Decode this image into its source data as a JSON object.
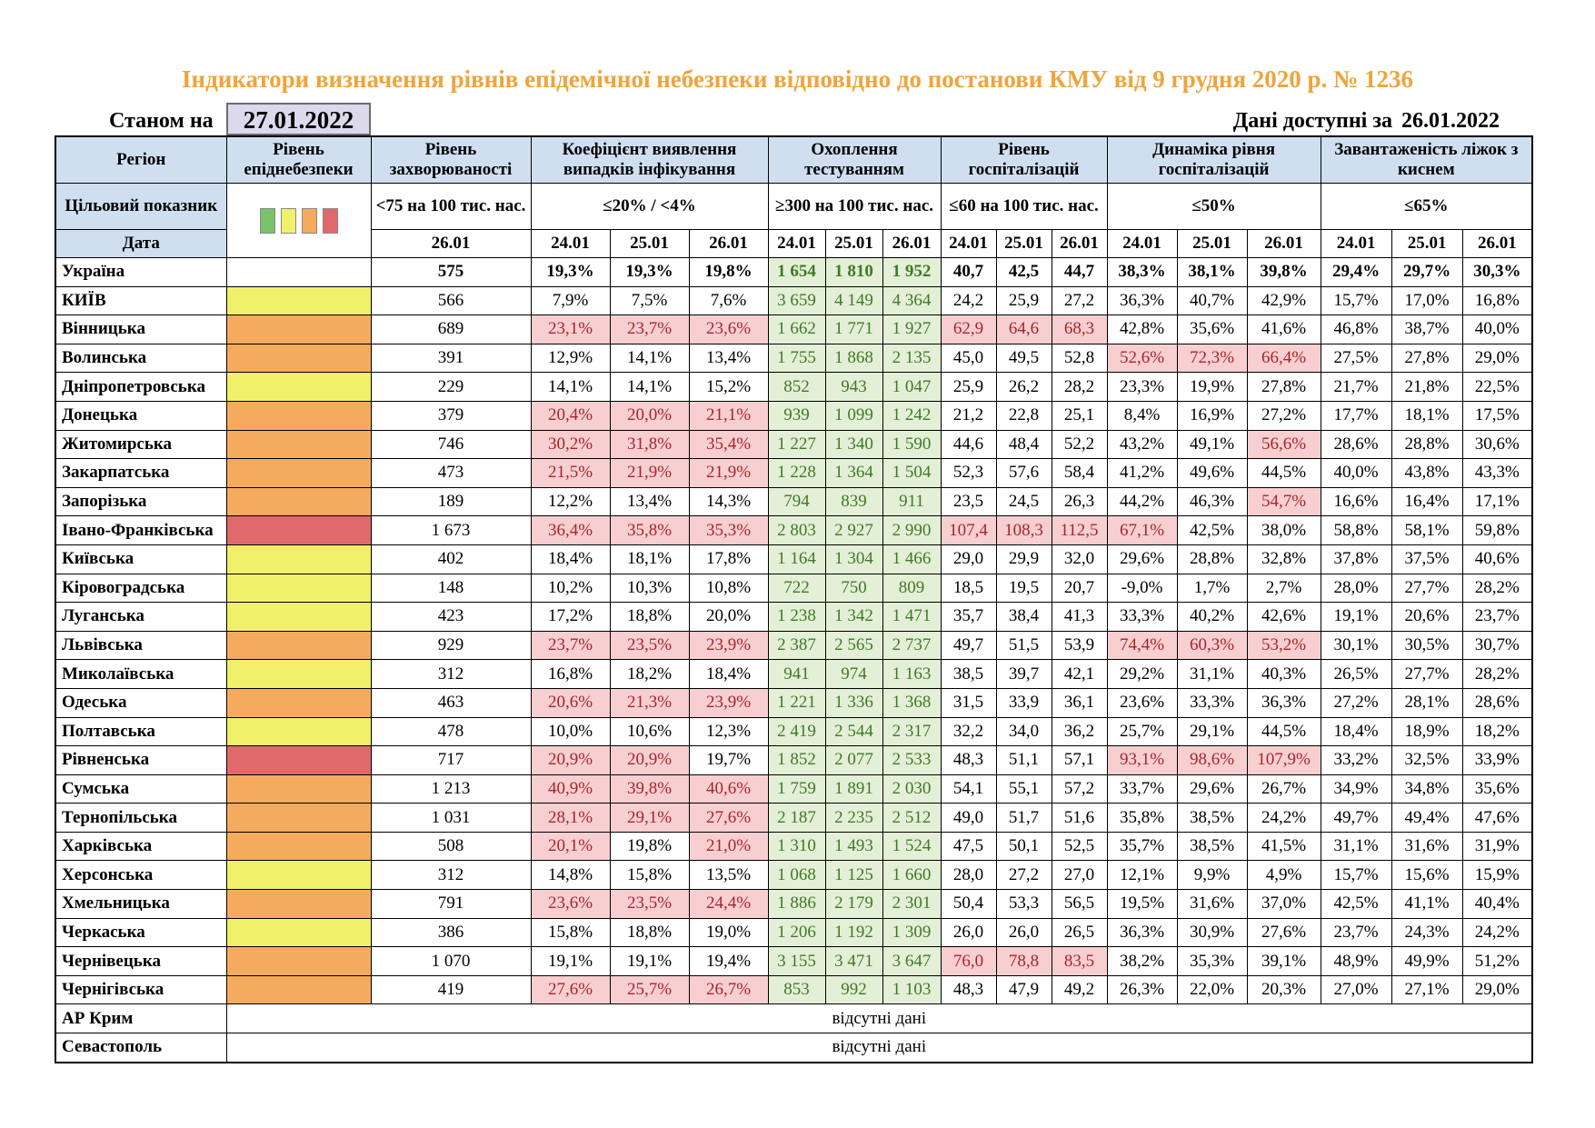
{
  "title": "Індикатори визначення рівнів епідемічної небезпеки відповідно до постанови КМУ від 9 грудня 2020 р. № 1236",
  "as_of_label": "Станом на",
  "as_of_date": "27.01.2022",
  "available_label": "Дані доступні за",
  "available_date": "26.01.2022",
  "headers": {
    "region": "Регіон",
    "danger_level": "Рівень епіднебезпеки",
    "incidence": "Рівень захворюваності",
    "detection": "Коефіцієнт виявлення випадків інфікування",
    "testing": "Охоплення тестуванням",
    "hospitalization": "Рівень госпіталізацій",
    "hosp_dynamics": "Динаміка рівня госпіталізацій",
    "oxygen_beds": "Завантаженість ліжок з киснем",
    "target": "Цільовий показник",
    "target_incidence": "<75 на 100 тис. нас.",
    "target_detection": "≤20% / <4%",
    "target_testing": "≥300 на 100 тис. нас.",
    "target_hosp": "≤60 на 100 тис. нас.",
    "target_dyn": "≤50%",
    "target_oxygen": "≤65%",
    "date": "Дата",
    "d_incidence": "26.01",
    "dates": [
      "24.01",
      "25.01",
      "26.01"
    ]
  },
  "legend_colors": [
    "#7cc26a",
    "#f1f06b",
    "#f4ab5e",
    "#e0696c"
  ],
  "level_colors": {
    "yellow": "#f1f06b",
    "orange": "#f4ab5e",
    "red": "#e0696c"
  },
  "no_data_text": "відсутні дані",
  "rows": [
    {
      "region": "Україна",
      "level": "",
      "inc": "575",
      "det": [
        "19,3%",
        "19,3%",
        "19,8%"
      ],
      "test": [
        "1 654",
        "1 810",
        "1 952"
      ],
      "hosp": [
        "40,7",
        "42,5",
        "44,7"
      ],
      "dyn": [
        "38,3%",
        "38,1%",
        "39,8%"
      ],
      "oxy": [
        "29,4%",
        "29,7%",
        "30,3%"
      ],
      "detF": [
        0,
        0,
        0
      ],
      "testF": [
        1,
        1,
        1
      ],
      "hospF": [
        0,
        0,
        0
      ],
      "dynF": [
        0,
        0,
        0
      ]
    },
    {
      "region": "КИЇВ",
      "level": "yellow",
      "inc": "566",
      "det": [
        "7,9%",
        "7,5%",
        "7,6%"
      ],
      "test": [
        "3 659",
        "4 149",
        "4 364"
      ],
      "hosp": [
        "24,2",
        "25,9",
        "27,2"
      ],
      "dyn": [
        "36,3%",
        "40,7%",
        "42,9%"
      ],
      "oxy": [
        "15,7%",
        "17,0%",
        "16,8%"
      ],
      "detF": [
        0,
        0,
        0
      ],
      "testF": [
        1,
        1,
        1
      ],
      "hospF": [
        0,
        0,
        0
      ],
      "dynF": [
        0,
        0,
        0
      ]
    },
    {
      "region": "Вінницька",
      "level": "orange",
      "inc": "689",
      "det": [
        "23,1%",
        "23,7%",
        "23,6%"
      ],
      "test": [
        "1 662",
        "1 771",
        "1 927"
      ],
      "hosp": [
        "62,9",
        "64,6",
        "68,3"
      ],
      "dyn": [
        "42,8%",
        "35,6%",
        "41,6%"
      ],
      "oxy": [
        "46,8%",
        "38,7%",
        "40,0%"
      ],
      "detF": [
        1,
        1,
        1
      ],
      "testF": [
        1,
        1,
        1
      ],
      "hospF": [
        1,
        1,
        1
      ],
      "dynF": [
        0,
        0,
        0
      ]
    },
    {
      "region": "Волинська",
      "level": "orange",
      "inc": "391",
      "det": [
        "12,9%",
        "14,1%",
        "13,4%"
      ],
      "test": [
        "1 755",
        "1 868",
        "2 135"
      ],
      "hosp": [
        "45,0",
        "49,5",
        "52,8"
      ],
      "dyn": [
        "52,6%",
        "72,3%",
        "66,4%"
      ],
      "oxy": [
        "27,5%",
        "27,8%",
        "29,0%"
      ],
      "detF": [
        0,
        0,
        0
      ],
      "testF": [
        1,
        1,
        1
      ],
      "hospF": [
        0,
        0,
        0
      ],
      "dynF": [
        1,
        1,
        1
      ]
    },
    {
      "region": "Дніпропетровська",
      "level": "yellow",
      "inc": "229",
      "det": [
        "14,1%",
        "14,1%",
        "15,2%"
      ],
      "test": [
        "852",
        "943",
        "1 047"
      ],
      "hosp": [
        "25,9",
        "26,2",
        "28,2"
      ],
      "dyn": [
        "23,3%",
        "19,9%",
        "27,8%"
      ],
      "oxy": [
        "21,7%",
        "21,8%",
        "22,5%"
      ],
      "detF": [
        0,
        0,
        0
      ],
      "testF": [
        1,
        1,
        1
      ],
      "hospF": [
        0,
        0,
        0
      ],
      "dynF": [
        0,
        0,
        0
      ]
    },
    {
      "region": "Донецька",
      "level": "orange",
      "inc": "379",
      "det": [
        "20,4%",
        "20,0%",
        "21,1%"
      ],
      "test": [
        "939",
        "1 099",
        "1 242"
      ],
      "hosp": [
        "21,2",
        "22,8",
        "25,1"
      ],
      "dyn": [
        "8,4%",
        "16,9%",
        "27,2%"
      ],
      "oxy": [
        "17,7%",
        "18,1%",
        "17,5%"
      ],
      "detF": [
        1,
        1,
        1
      ],
      "testF": [
        1,
        1,
        1
      ],
      "hospF": [
        0,
        0,
        0
      ],
      "dynF": [
        0,
        0,
        0
      ]
    },
    {
      "region": "Житомирська",
      "level": "orange",
      "inc": "746",
      "det": [
        "30,2%",
        "31,8%",
        "35,4%"
      ],
      "test": [
        "1 227",
        "1 340",
        "1 590"
      ],
      "hosp": [
        "44,6",
        "48,4",
        "52,2"
      ],
      "dyn": [
        "43,2%",
        "49,1%",
        "56,6%"
      ],
      "oxy": [
        "28,6%",
        "28,8%",
        "30,6%"
      ],
      "detF": [
        1,
        1,
        1
      ],
      "testF": [
        1,
        1,
        1
      ],
      "hospF": [
        0,
        0,
        0
      ],
      "dynF": [
        0,
        0,
        1
      ]
    },
    {
      "region": "Закарпатська",
      "level": "orange",
      "inc": "473",
      "det": [
        "21,5%",
        "21,9%",
        "21,9%"
      ],
      "test": [
        "1 228",
        "1 364",
        "1 504"
      ],
      "hosp": [
        "52,3",
        "57,6",
        "58,4"
      ],
      "dyn": [
        "41,2%",
        "49,6%",
        "44,5%"
      ],
      "oxy": [
        "40,0%",
        "43,8%",
        "43,3%"
      ],
      "detF": [
        1,
        1,
        1
      ],
      "testF": [
        1,
        1,
        1
      ],
      "hospF": [
        0,
        0,
        0
      ],
      "dynF": [
        0,
        0,
        0
      ]
    },
    {
      "region": "Запорізька",
      "level": "orange",
      "inc": "189",
      "det": [
        "12,2%",
        "13,4%",
        "14,3%"
      ],
      "test": [
        "794",
        "839",
        "911"
      ],
      "hosp": [
        "23,5",
        "24,5",
        "26,3"
      ],
      "dyn": [
        "44,2%",
        "46,3%",
        "54,7%"
      ],
      "oxy": [
        "16,6%",
        "16,4%",
        "17,1%"
      ],
      "detF": [
        0,
        0,
        0
      ],
      "testF": [
        1,
        1,
        1
      ],
      "hospF": [
        0,
        0,
        0
      ],
      "dynF": [
        0,
        0,
        1
      ]
    },
    {
      "region": "Івано-Франківська",
      "level": "red",
      "inc": "1 673",
      "det": [
        "36,4%",
        "35,8%",
        "35,3%"
      ],
      "test": [
        "2 803",
        "2 927",
        "2 990"
      ],
      "hosp": [
        "107,4",
        "108,3",
        "112,5"
      ],
      "dyn": [
        "67,1%",
        "42,5%",
        "38,0%"
      ],
      "oxy": [
        "58,8%",
        "58,1%",
        "59,8%"
      ],
      "detF": [
        1,
        1,
        1
      ],
      "testF": [
        1,
        1,
        1
      ],
      "hospF": [
        1,
        1,
        1
      ],
      "dynF": [
        1,
        0,
        0
      ]
    },
    {
      "region": "Київська",
      "level": "yellow",
      "inc": "402",
      "det": [
        "18,4%",
        "18,1%",
        "17,8%"
      ],
      "test": [
        "1 164",
        "1 304",
        "1 466"
      ],
      "hosp": [
        "29,0",
        "29,9",
        "32,0"
      ],
      "dyn": [
        "29,6%",
        "28,8%",
        "32,8%"
      ],
      "oxy": [
        "37,8%",
        "37,5%",
        "40,6%"
      ],
      "detF": [
        0,
        0,
        0
      ],
      "testF": [
        1,
        1,
        1
      ],
      "hospF": [
        0,
        0,
        0
      ],
      "dynF": [
        0,
        0,
        0
      ]
    },
    {
      "region": "Кіровоградська",
      "level": "yellow",
      "inc": "148",
      "det": [
        "10,2%",
        "10,3%",
        "10,8%"
      ],
      "test": [
        "722",
        "750",
        "809"
      ],
      "hosp": [
        "18,5",
        "19,5",
        "20,7"
      ],
      "dyn": [
        "-9,0%",
        "1,7%",
        "2,7%"
      ],
      "oxy": [
        "28,0%",
        "27,7%",
        "28,2%"
      ],
      "detF": [
        0,
        0,
        0
      ],
      "testF": [
        1,
        1,
        1
      ],
      "hospF": [
        0,
        0,
        0
      ],
      "dynF": [
        0,
        0,
        0
      ]
    },
    {
      "region": "Луганська",
      "level": "yellow",
      "inc": "423",
      "det": [
        "17,2%",
        "18,8%",
        "20,0%"
      ],
      "test": [
        "1 238",
        "1 342",
        "1 471"
      ],
      "hosp": [
        "35,7",
        "38,4",
        "41,3"
      ],
      "dyn": [
        "33,3%",
        "40,2%",
        "42,6%"
      ],
      "oxy": [
        "19,1%",
        "20,6%",
        "23,7%"
      ],
      "detF": [
        0,
        0,
        0
      ],
      "testF": [
        1,
        1,
        1
      ],
      "hospF": [
        0,
        0,
        0
      ],
      "dynF": [
        0,
        0,
        0
      ]
    },
    {
      "region": "Львівська",
      "level": "orange",
      "inc": "929",
      "det": [
        "23,7%",
        "23,5%",
        "23,9%"
      ],
      "test": [
        "2 387",
        "2 565",
        "2 737"
      ],
      "hosp": [
        "49,7",
        "51,5",
        "53,9"
      ],
      "dyn": [
        "74,4%",
        "60,3%",
        "53,2%"
      ],
      "oxy": [
        "30,1%",
        "30,5%",
        "30,7%"
      ],
      "detF": [
        1,
        1,
        1
      ],
      "testF": [
        1,
        1,
        1
      ],
      "hospF": [
        0,
        0,
        0
      ],
      "dynF": [
        1,
        1,
        1
      ]
    },
    {
      "region": "Миколаївська",
      "level": "yellow",
      "inc": "312",
      "det": [
        "16,8%",
        "18,2%",
        "18,4%"
      ],
      "test": [
        "941",
        "974",
        "1 163"
      ],
      "hosp": [
        "38,5",
        "39,7",
        "42,1"
      ],
      "dyn": [
        "29,2%",
        "31,1%",
        "40,3%"
      ],
      "oxy": [
        "26,5%",
        "27,7%",
        "28,2%"
      ],
      "detF": [
        0,
        0,
        0
      ],
      "testF": [
        1,
        1,
        1
      ],
      "hospF": [
        0,
        0,
        0
      ],
      "dynF": [
        0,
        0,
        0
      ]
    },
    {
      "region": "Одеська",
      "level": "orange",
      "inc": "463",
      "det": [
        "20,6%",
        "21,3%",
        "23,9%"
      ],
      "test": [
        "1 221",
        "1 336",
        "1 368"
      ],
      "hosp": [
        "31,5",
        "33,9",
        "36,1"
      ],
      "dyn": [
        "23,6%",
        "33,3%",
        "36,3%"
      ],
      "oxy": [
        "27,2%",
        "28,1%",
        "28,6%"
      ],
      "detF": [
        1,
        1,
        1
      ],
      "testF": [
        1,
        1,
        1
      ],
      "hospF": [
        0,
        0,
        0
      ],
      "dynF": [
        0,
        0,
        0
      ]
    },
    {
      "region": "Полтавська",
      "level": "yellow",
      "inc": "478",
      "det": [
        "10,0%",
        "10,6%",
        "12,3%"
      ],
      "test": [
        "2 419",
        "2 544",
        "2 317"
      ],
      "hosp": [
        "32,2",
        "34,0",
        "36,2"
      ],
      "dyn": [
        "25,7%",
        "29,1%",
        "44,5%"
      ],
      "oxy": [
        "18,4%",
        "18,9%",
        "18,2%"
      ],
      "detF": [
        0,
        0,
        0
      ],
      "testF": [
        1,
        1,
        1
      ],
      "hospF": [
        0,
        0,
        0
      ],
      "dynF": [
        0,
        0,
        0
      ]
    },
    {
      "region": "Рівненська",
      "level": "red",
      "inc": "717",
      "det": [
        "20,9%",
        "20,9%",
        "19,7%"
      ],
      "test": [
        "1 852",
        "2 077",
        "2 533"
      ],
      "hosp": [
        "48,3",
        "51,1",
        "57,1"
      ],
      "dyn": [
        "93,1%",
        "98,6%",
        "107,9%"
      ],
      "oxy": [
        "33,2%",
        "32,5%",
        "33,9%"
      ],
      "detF": [
        1,
        1,
        0
      ],
      "testF": [
        1,
        1,
        1
      ],
      "hospF": [
        0,
        0,
        0
      ],
      "dynF": [
        1,
        1,
        1
      ]
    },
    {
      "region": "Сумська",
      "level": "orange",
      "inc": "1 213",
      "det": [
        "40,9%",
        "39,8%",
        "40,6%"
      ],
      "test": [
        "1 759",
        "1 891",
        "2 030"
      ],
      "hosp": [
        "54,1",
        "55,1",
        "57,2"
      ],
      "dyn": [
        "33,7%",
        "29,6%",
        "26,7%"
      ],
      "oxy": [
        "34,9%",
        "34,8%",
        "35,6%"
      ],
      "detF": [
        1,
        1,
        1
      ],
      "testF": [
        1,
        1,
        1
      ],
      "hospF": [
        0,
        0,
        0
      ],
      "dynF": [
        0,
        0,
        0
      ]
    },
    {
      "region": "Тернопільська",
      "level": "orange",
      "inc": "1 031",
      "det": [
        "28,1%",
        "29,1%",
        "27,6%"
      ],
      "test": [
        "2 187",
        "2 235",
        "2 512"
      ],
      "hosp": [
        "49,0",
        "51,7",
        "51,6"
      ],
      "dyn": [
        "35,8%",
        "38,5%",
        "24,2%"
      ],
      "oxy": [
        "49,7%",
        "49,4%",
        "47,6%"
      ],
      "detF": [
        1,
        1,
        1
      ],
      "testF": [
        1,
        1,
        1
      ],
      "hospF": [
        0,
        0,
        0
      ],
      "dynF": [
        0,
        0,
        0
      ]
    },
    {
      "region": "Харківська",
      "level": "orange",
      "inc": "508",
      "det": [
        "20,1%",
        "19,8%",
        "21,0%"
      ],
      "test": [
        "1 310",
        "1 493",
        "1 524"
      ],
      "hosp": [
        "47,5",
        "50,1",
        "52,5"
      ],
      "dyn": [
        "35,7%",
        "38,5%",
        "41,5%"
      ],
      "oxy": [
        "31,1%",
        "31,6%",
        "31,9%"
      ],
      "detF": [
        1,
        0,
        1
      ],
      "testF": [
        1,
        1,
        1
      ],
      "hospF": [
        0,
        0,
        0
      ],
      "dynF": [
        0,
        0,
        0
      ]
    },
    {
      "region": "Херсонська",
      "level": "yellow",
      "inc": "312",
      "det": [
        "14,8%",
        "15,8%",
        "13,5%"
      ],
      "test": [
        "1 068",
        "1 125",
        "1 660"
      ],
      "hosp": [
        "28,0",
        "27,2",
        "27,0"
      ],
      "dyn": [
        "12,1%",
        "9,9%",
        "4,9%"
      ],
      "oxy": [
        "15,7%",
        "15,6%",
        "15,9%"
      ],
      "detF": [
        0,
        0,
        0
      ],
      "testF": [
        1,
        1,
        1
      ],
      "hospF": [
        0,
        0,
        0
      ],
      "dynF": [
        0,
        0,
        0
      ]
    },
    {
      "region": "Хмельницька",
      "level": "orange",
      "inc": "791",
      "det": [
        "23,6%",
        "23,5%",
        "24,4%"
      ],
      "test": [
        "1 886",
        "2 179",
        "2 301"
      ],
      "hosp": [
        "50,4",
        "53,3",
        "56,5"
      ],
      "dyn": [
        "19,5%",
        "31,6%",
        "37,0%"
      ],
      "oxy": [
        "42,5%",
        "41,1%",
        "40,4%"
      ],
      "detF": [
        1,
        1,
        1
      ],
      "testF": [
        1,
        1,
        1
      ],
      "hospF": [
        0,
        0,
        0
      ],
      "dynF": [
        0,
        0,
        0
      ]
    },
    {
      "region": "Черкаська",
      "level": "yellow",
      "inc": "386",
      "det": [
        "15,8%",
        "18,8%",
        "19,0%"
      ],
      "test": [
        "1 206",
        "1 192",
        "1 309"
      ],
      "hosp": [
        "26,0",
        "26,0",
        "26,5"
      ],
      "dyn": [
        "36,3%",
        "30,9%",
        "27,6%"
      ],
      "oxy": [
        "23,7%",
        "24,3%",
        "24,2%"
      ],
      "detF": [
        0,
        0,
        0
      ],
      "testF": [
        1,
        1,
        1
      ],
      "hospF": [
        0,
        0,
        0
      ],
      "dynF": [
        0,
        0,
        0
      ]
    },
    {
      "region": "Чернівецька",
      "level": "orange",
      "inc": "1 070",
      "det": [
        "19,1%",
        "19,1%",
        "19,4%"
      ],
      "test": [
        "3 155",
        "3 471",
        "3 647"
      ],
      "hosp": [
        "76,0",
        "78,8",
        "83,5"
      ],
      "dyn": [
        "38,2%",
        "35,3%",
        "39,1%"
      ],
      "oxy": [
        "48,9%",
        "49,9%",
        "51,2%"
      ],
      "detF": [
        0,
        0,
        0
      ],
      "testF": [
        1,
        1,
        1
      ],
      "hospF": [
        1,
        1,
        1
      ],
      "dynF": [
        0,
        0,
        0
      ]
    },
    {
      "region": "Чернігівська",
      "level": "orange",
      "inc": "419",
      "det": [
        "27,6%",
        "25,7%",
        "26,7%"
      ],
      "test": [
        "853",
        "992",
        "1 103"
      ],
      "hosp": [
        "48,3",
        "47,9",
        "49,2"
      ],
      "dyn": [
        "26,3%",
        "22,0%",
        "20,3%"
      ],
      "oxy": [
        "27,0%",
        "27,1%",
        "29,0%"
      ],
      "detF": [
        1,
        1,
        1
      ],
      "testF": [
        1,
        1,
        1
      ],
      "hospF": [
        0,
        0,
        0
      ],
      "dynF": [
        0,
        0,
        0
      ]
    }
  ],
  "no_data_rows": [
    "АР Крим",
    "Севастополь"
  ]
}
